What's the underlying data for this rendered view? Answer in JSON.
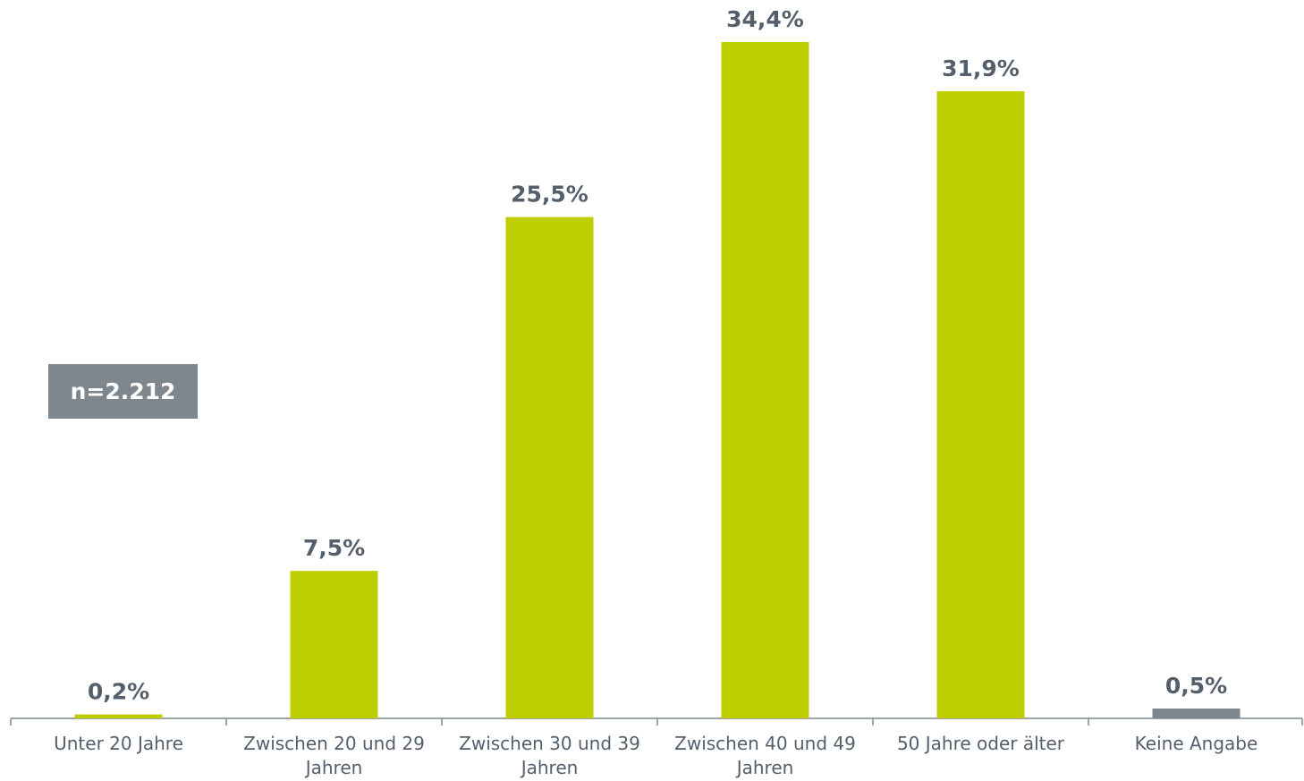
{
  "chart_data": {
    "type": "bar",
    "categories": [
      "Unter 20 Jahre",
      "Zwischen 20 und 29 Jahren",
      "Zwischen 30 und 39 Jahren",
      "Zwischen 40 und 49 Jahren",
      "50 Jahre oder älter",
      "Keine Angabe"
    ],
    "values": [
      0.2,
      7.5,
      25.5,
      34.4,
      31.9,
      0.5
    ],
    "value_labels": [
      "0,2%",
      "7,5%",
      "25,5%",
      "34,4%",
      "31,9%",
      "0,5%"
    ],
    "colors": [
      "#bfce00",
      "#bfce00",
      "#bfce00",
      "#bfce00",
      "#bfce00",
      "#7f878e"
    ],
    "annotation": "n=2.212"
  }
}
